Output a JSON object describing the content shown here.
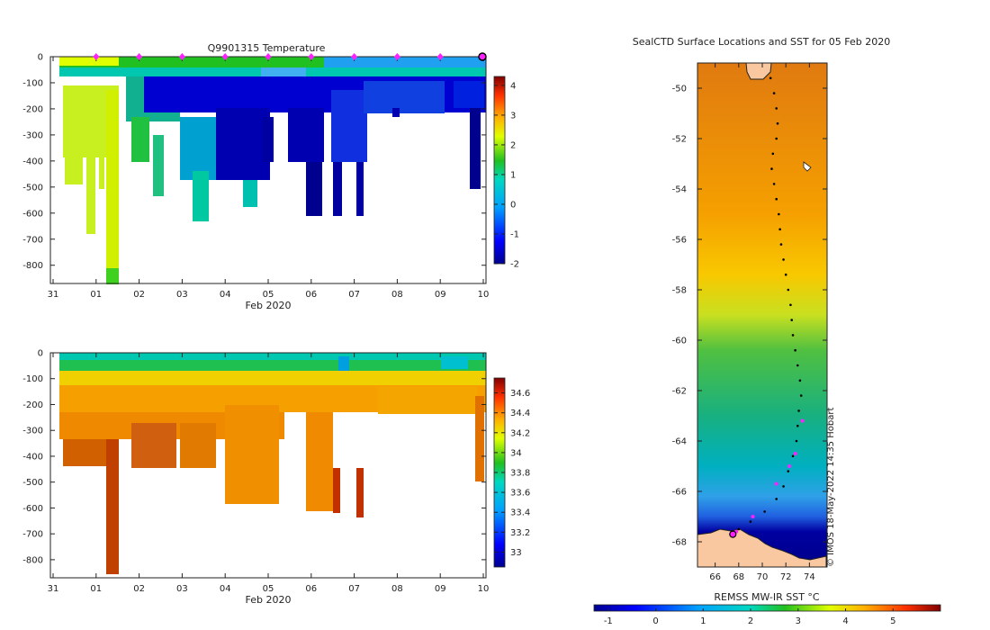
{
  "chart_data": [
    {
      "type": "heatmap",
      "title": "Q9901315  Temperature",
      "xlabel": "Feb 2020",
      "x_tick_labels": [
        "31",
        "01",
        "02",
        "03",
        "04",
        "05",
        "06",
        "07",
        "08",
        "09",
        "10"
      ],
      "y_tick_labels": [
        "0",
        "-100",
        "-200",
        "-300",
        "-400",
        "-500",
        "-600",
        "-700",
        "-800"
      ],
      "ylim": [
        -870,
        0
      ],
      "colorbar": {
        "range": [
          -2,
          4.3
        ],
        "ticks": [
          "-2",
          "-1",
          "0",
          "1",
          "2",
          "3",
          "4"
        ]
      },
      "profile_markers_days": [
        1,
        2,
        3,
        4,
        5,
        6,
        7,
        8,
        9
      ]
    },
    {
      "type": "heatmap",
      "title": "",
      "xlabel": "Feb 2020",
      "x_tick_labels": [
        "31",
        "01",
        "02",
        "03",
        "04",
        "05",
        "06",
        "07",
        "08",
        "09",
        "10"
      ],
      "y_tick_labels": [
        "0",
        "-100",
        "-200",
        "-300",
        "-400",
        "-500",
        "-600",
        "-700",
        "-800"
      ],
      "ylim": [
        -870,
        0
      ],
      "colorbar": {
        "range": [
          32.85,
          34.75
        ],
        "ticks": [
          "33",
          "33.2",
          "33.4",
          "33.6",
          "33.8",
          "34",
          "34.2",
          "34.4",
          "34.6"
        ]
      }
    },
    {
      "type": "heatmap",
      "title": "SealCTD Surface Locations and SST for 05 Feb 2020",
      "x_tick_labels": [
        "66",
        "68",
        "70",
        "72",
        "74"
      ],
      "y_tick_labels": [
        "-50",
        "-52",
        "-54",
        "-56",
        "-58",
        "-60",
        "-62",
        "-64",
        "-66",
        "-68"
      ],
      "xlim": [
        64.5,
        75.5
      ],
      "ylim": [
        -69,
        -49
      ],
      "colorbar_label": "REMSS MW-IR SST °C",
      "colorbar": {
        "range": [
          -1.3,
          6
        ],
        "ticks": [
          "-1",
          "0",
          "1",
          "2",
          "3",
          "4",
          "5"
        ]
      },
      "credit": "© IMOS 18-May-2022 14:35 Hobart"
    }
  ]
}
